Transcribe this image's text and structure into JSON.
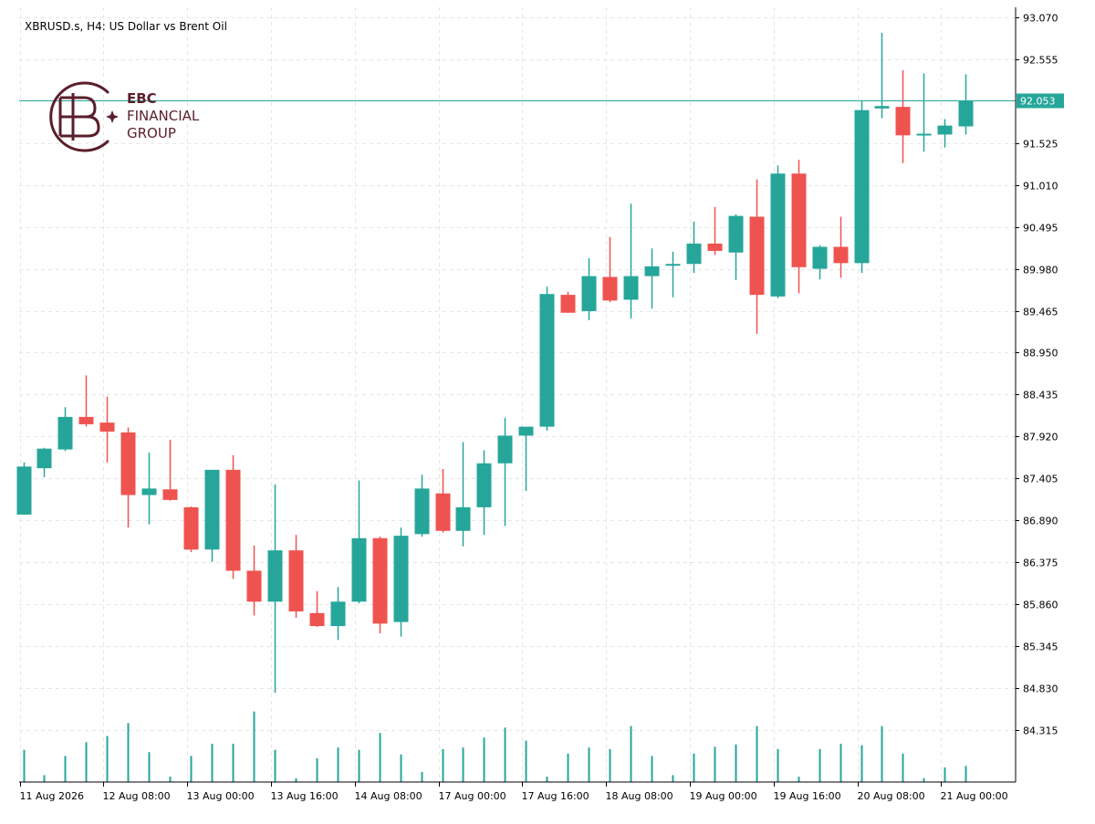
{
  "header": {
    "symbol_line": "XBRUSD.s, H4:  US Dollar vs Brent Oil"
  },
  "logo": {
    "line1": "EBC",
    "line2": "FINANCIAL",
    "line3": "GROUP",
    "color": "#5a1f2b"
  },
  "colors": {
    "bull": "#26a69a",
    "bear": "#ef5350",
    "grid": "#e6e6e6",
    "axis": "#000000",
    "price_line": "#26a69a"
  },
  "current_price": {
    "value": 92.053,
    "label": "92.053"
  },
  "chart_data": {
    "type": "candlestick",
    "title": "XBRUSD.s, H4:  US Dollar vs Brent Oil",
    "ylim": [
      83.8,
      93.07
    ],
    "y_ticks": [
      "93.070",
      "92.555",
      "91.525",
      "91.010",
      "90.495",
      "89.980",
      "89.465",
      "88.950",
      "88.435",
      "87.920",
      "87.405",
      "86.890",
      "86.375",
      "85.860",
      "85.345",
      "84.830",
      "84.315"
    ],
    "x_tick_labels": [
      {
        "label": "11 Aug 2026",
        "index": 0
      },
      {
        "label": "12 Aug 08:00",
        "index": 4
      },
      {
        "label": "13 Aug 00:00",
        "index": 8
      },
      {
        "label": "13 Aug 16:00",
        "index": 12
      },
      {
        "label": "14 Aug 08:00",
        "index": 16
      },
      {
        "label": "17 Aug 00:00",
        "index": 20
      },
      {
        "label": "17 Aug 16:00",
        "index": 24
      },
      {
        "label": "18 Aug 08:00",
        "index": 28
      },
      {
        "label": "19 Aug 00:00",
        "index": 32
      },
      {
        "label": "19 Aug 16:00",
        "index": 36
      },
      {
        "label": "20 Aug 08:00",
        "index": 40
      },
      {
        "label": "21 Aug 00:00",
        "index": 44
      }
    ],
    "grid": true,
    "candles": [
      {
        "o": 86.96,
        "h": 87.6,
        "l": 86.96,
        "c": 87.55
      },
      {
        "o": 87.53,
        "h": 87.78,
        "l": 87.42,
        "c": 87.77
      },
      {
        "o": 87.76,
        "h": 88.28,
        "l": 87.74,
        "c": 88.16
      },
      {
        "o": 88.16,
        "h": 88.67,
        "l": 88.04,
        "c": 88.07
      },
      {
        "o": 88.09,
        "h": 88.41,
        "l": 87.6,
        "c": 87.98
      },
      {
        "o": 87.97,
        "h": 88.03,
        "l": 86.8,
        "c": 87.2
      },
      {
        "o": 87.2,
        "h": 87.72,
        "l": 86.84,
        "c": 87.28
      },
      {
        "o": 87.27,
        "h": 87.88,
        "l": 87.13,
        "c": 87.14
      },
      {
        "o": 87.05,
        "h": 87.06,
        "l": 86.5,
        "c": 86.53
      },
      {
        "o": 86.53,
        "h": 87.51,
        "l": 86.38,
        "c": 87.51
      },
      {
        "o": 87.51,
        "h": 87.69,
        "l": 86.17,
        "c": 86.27
      },
      {
        "o": 86.27,
        "h": 86.58,
        "l": 85.72,
        "c": 85.89
      },
      {
        "o": 85.89,
        "h": 87.33,
        "l": 84.77,
        "c": 86.52
      },
      {
        "o": 86.52,
        "h": 86.71,
        "l": 85.69,
        "c": 85.77
      },
      {
        "o": 85.75,
        "h": 86.02,
        "l": 85.58,
        "c": 85.59
      },
      {
        "o": 85.59,
        "h": 86.07,
        "l": 85.42,
        "c": 85.89
      },
      {
        "o": 85.89,
        "h": 87.38,
        "l": 85.87,
        "c": 86.67
      },
      {
        "o": 86.67,
        "h": 86.69,
        "l": 85.5,
        "c": 85.62
      },
      {
        "o": 85.64,
        "h": 86.8,
        "l": 85.46,
        "c": 86.7
      },
      {
        "o": 86.72,
        "h": 87.45,
        "l": 86.69,
        "c": 87.28
      },
      {
        "o": 87.22,
        "h": 87.52,
        "l": 86.74,
        "c": 86.76
      },
      {
        "o": 86.76,
        "h": 87.85,
        "l": 86.57,
        "c": 87.05
      },
      {
        "o": 87.05,
        "h": 87.75,
        "l": 86.71,
        "c": 87.59
      },
      {
        "o": 87.59,
        "h": 88.15,
        "l": 86.82,
        "c": 87.93
      },
      {
        "o": 87.93,
        "h": 88.04,
        "l": 87.25,
        "c": 88.04
      },
      {
        "o": 88.04,
        "h": 89.76,
        "l": 87.99,
        "c": 89.67
      },
      {
        "o": 89.66,
        "h": 89.7,
        "l": 89.44,
        "c": 89.44
      },
      {
        "o": 89.46,
        "h": 90.11,
        "l": 89.35,
        "c": 89.89
      },
      {
        "o": 89.88,
        "h": 90.37,
        "l": 89.57,
        "c": 89.59
      },
      {
        "o": 89.6,
        "h": 90.78,
        "l": 89.37,
        "c": 89.89
      },
      {
        "o": 89.89,
        "h": 90.23,
        "l": 89.49,
        "c": 90.01
      },
      {
        "o": 90.03,
        "h": 90.19,
        "l": 89.63,
        "c": 90.04
      },
      {
        "o": 90.04,
        "h": 90.56,
        "l": 89.93,
        "c": 90.29
      },
      {
        "o": 90.29,
        "h": 90.74,
        "l": 90.15,
        "c": 90.2
      },
      {
        "o": 90.18,
        "h": 90.65,
        "l": 89.84,
        "c": 90.63
      },
      {
        "o": 90.62,
        "h": 91.08,
        "l": 89.18,
        "c": 89.66
      },
      {
        "o": 89.64,
        "h": 91.25,
        "l": 89.62,
        "c": 91.15
      },
      {
        "o": 91.15,
        "h": 91.32,
        "l": 89.68,
        "c": 90.0
      },
      {
        "o": 89.98,
        "h": 90.27,
        "l": 89.85,
        "c": 90.25
      },
      {
        "o": 90.25,
        "h": 90.62,
        "l": 89.87,
        "c": 90.05
      },
      {
        "o": 90.05,
        "h": 92.05,
        "l": 89.93,
        "c": 91.93
      },
      {
        "o": 91.95,
        "h": 92.88,
        "l": 91.83,
        "c": 91.98
      },
      {
        "o": 91.97,
        "h": 92.42,
        "l": 91.28,
        "c": 91.62
      },
      {
        "o": 91.62,
        "h": 92.38,
        "l": 91.42,
        "c": 91.64
      },
      {
        "o": 91.63,
        "h": 91.82,
        "l": 91.47,
        "c": 91.74
      },
      {
        "o": 91.73,
        "h": 92.37,
        "l": 91.63,
        "c": 92.05
      }
    ],
    "volume_relative": [
      0.42,
      0.09,
      0.34,
      0.52,
      0.6,
      0.77,
      0.39,
      0.07,
      0.34,
      0.5,
      0.5,
      0.92,
      0.42,
      0.05,
      0.31,
      0.45,
      0.42,
      0.64,
      0.36,
      0.13,
      0.43,
      0.45,
      0.58,
      0.71,
      0.54,
      0.07,
      0.37,
      0.45,
      0.43,
      0.73,
      0.34,
      0.09,
      0.37,
      0.46,
      0.49,
      0.73,
      0.43,
      0.07,
      0.43,
      0.5,
      0.48,
      0.73,
      0.37,
      0.05,
      0.19,
      0.21
    ]
  }
}
